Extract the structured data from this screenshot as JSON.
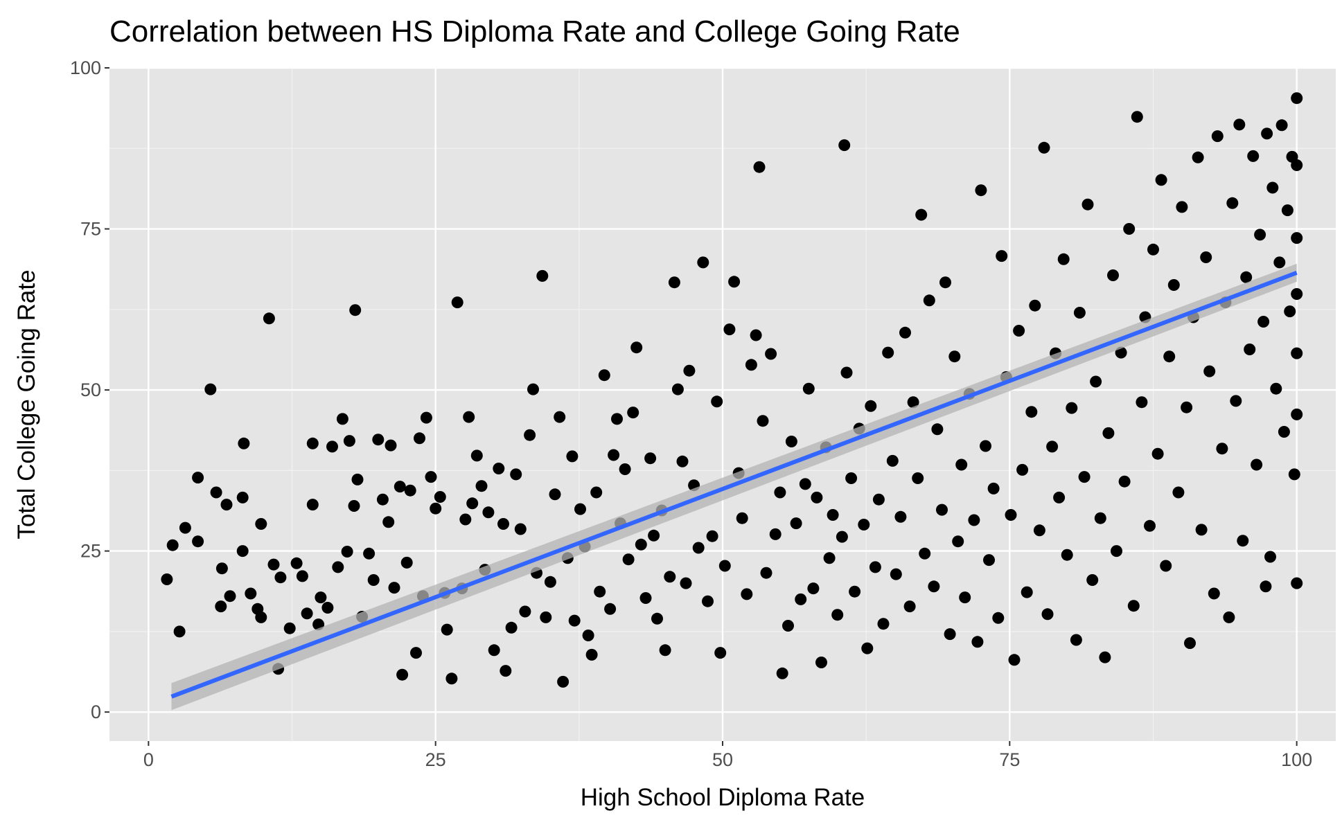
{
  "chart_data": {
    "type": "scatter",
    "title": "Correlation between HS Diploma Rate and College Going Rate",
    "xlabel": "High School Diploma Rate",
    "ylabel": "Total College Going Rate",
    "xlim": [
      -3.4,
      103.4
    ],
    "ylim": [
      -4.5,
      100
    ],
    "x_ticks": [
      0,
      25,
      50,
      75,
      100
    ],
    "y_ticks": [
      0,
      25,
      50,
      75,
      100
    ],
    "grid": true,
    "panel_background": "#e5e5e5",
    "point_color": "#000000",
    "trend_line": {
      "method": "linear fit",
      "color": "#3366ff",
      "band_color": "#b3b3b3",
      "x": [
        2,
        100
      ],
      "y": [
        2.4,
        68.2
      ],
      "band_halfwidth_at_ends": [
        2.1,
        1.4
      ]
    },
    "points": [
      [
        1.6,
        20.6
      ],
      [
        2.1,
        25.9
      ],
      [
        2.7,
        12.5
      ],
      [
        3.2,
        28.6
      ],
      [
        4.3,
        36.4
      ],
      [
        4.3,
        26.5
      ],
      [
        5.4,
        50.1
      ],
      [
        5.9,
        34.1
      ],
      [
        6.4,
        22.3
      ],
      [
        6.3,
        16.4
      ],
      [
        6.8,
        32.2
      ],
      [
        7.1,
        18.0
      ],
      [
        8.2,
        33.3
      ],
      [
        8.2,
        25.0
      ],
      [
        8.3,
        41.7
      ],
      [
        8.9,
        18.4
      ],
      [
        9.5,
        16.0
      ],
      [
        9.8,
        29.2
      ],
      [
        9.8,
        14.7
      ],
      [
        10.5,
        61.1
      ],
      [
        10.9,
        22.9
      ],
      [
        11.3,
        6.7
      ],
      [
        11.5,
        20.9
      ],
      [
        12.3,
        13.0
      ],
      [
        12.9,
        23.1
      ],
      [
        13.4,
        21.1
      ],
      [
        13.8,
        15.3
      ],
      [
        14.3,
        41.7
      ],
      [
        14.3,
        32.2
      ],
      [
        14.8,
        13.6
      ],
      [
        15.0,
        17.8
      ],
      [
        15.6,
        16.2
      ],
      [
        16.0,
        41.2
      ],
      [
        16.5,
        22.5
      ],
      [
        16.9,
        45.5
      ],
      [
        17.3,
        24.9
      ],
      [
        17.5,
        42.1
      ],
      [
        17.9,
        32.0
      ],
      [
        18.0,
        62.4
      ],
      [
        18.2,
        36.1
      ],
      [
        18.6,
        14.8
      ],
      [
        19.2,
        24.6
      ],
      [
        19.6,
        20.5
      ],
      [
        20.0,
        42.3
      ],
      [
        20.4,
        33.0
      ],
      [
        20.9,
        29.5
      ],
      [
        21.1,
        41.4
      ],
      [
        21.4,
        19.3
      ],
      [
        21.9,
        35.0
      ],
      [
        22.1,
        5.8
      ],
      [
        22.5,
        23.2
      ],
      [
        22.8,
        34.4
      ],
      [
        23.3,
        9.2
      ],
      [
        23.6,
        42.5
      ],
      [
        23.9,
        18.0
      ],
      [
        24.2,
        45.7
      ],
      [
        24.6,
        36.5
      ],
      [
        25.0,
        31.6
      ],
      [
        25.4,
        33.4
      ],
      [
        25.8,
        18.5
      ],
      [
        26.0,
        12.8
      ],
      [
        26.4,
        5.2
      ],
      [
        26.9,
        63.6
      ],
      [
        27.3,
        19.2
      ],
      [
        27.6,
        29.9
      ],
      [
        27.9,
        45.8
      ],
      [
        28.2,
        32.4
      ],
      [
        28.6,
        39.8
      ],
      [
        29.0,
        35.1
      ],
      [
        29.3,
        22.1
      ],
      [
        29.6,
        31.0
      ],
      [
        30.1,
        9.6
      ],
      [
        30.5,
        37.8
      ],
      [
        30.9,
        29.2
      ],
      [
        31.1,
        6.4
      ],
      [
        31.6,
        13.1
      ],
      [
        32.0,
        36.9
      ],
      [
        32.4,
        28.4
      ],
      [
        32.8,
        15.6
      ],
      [
        33.2,
        43.0
      ],
      [
        33.5,
        50.1
      ],
      [
        33.8,
        21.6
      ],
      [
        34.3,
        67.7
      ],
      [
        34.6,
        14.7
      ],
      [
        35.0,
        20.2
      ],
      [
        35.4,
        33.8
      ],
      [
        35.8,
        45.8
      ],
      [
        36.1,
        4.7
      ],
      [
        36.5,
        23.9
      ],
      [
        36.9,
        39.7
      ],
      [
        37.1,
        14.2
      ],
      [
        37.6,
        31.5
      ],
      [
        38.0,
        25.7
      ],
      [
        38.3,
        11.9
      ],
      [
        38.6,
        8.9
      ],
      [
        39.0,
        34.1
      ],
      [
        39.3,
        18.7
      ],
      [
        39.7,
        52.3
      ],
      [
        40.2,
        16.0
      ],
      [
        40.5,
        39.9
      ],
      [
        40.8,
        45.5
      ],
      [
        41.1,
        29.3
      ],
      [
        41.5,
        37.7
      ],
      [
        41.8,
        23.7
      ],
      [
        42.2,
        46.5
      ],
      [
        42.5,
        56.6
      ],
      [
        42.9,
        26.0
      ],
      [
        43.3,
        17.7
      ],
      [
        43.7,
        39.4
      ],
      [
        44.0,
        27.4
      ],
      [
        44.3,
        14.5
      ],
      [
        44.7,
        31.3
      ],
      [
        45.0,
        9.6
      ],
      [
        45.4,
        21.0
      ],
      [
        45.8,
        66.7
      ],
      [
        46.1,
        50.1
      ],
      [
        46.5,
        38.9
      ],
      [
        46.8,
        20.0
      ],
      [
        47.1,
        53.0
      ],
      [
        47.5,
        35.2
      ],
      [
        47.9,
        25.5
      ],
      [
        48.3,
        69.8
      ],
      [
        48.7,
        17.2
      ],
      [
        49.1,
        27.3
      ],
      [
        49.5,
        48.2
      ],
      [
        49.8,
        9.2
      ],
      [
        50.2,
        22.7
      ],
      [
        50.6,
        59.4
      ],
      [
        51.0,
        66.8
      ],
      [
        51.4,
        37.1
      ],
      [
        51.7,
        30.1
      ],
      [
        52.1,
        18.3
      ],
      [
        52.5,
        53.9
      ],
      [
        52.9,
        58.5
      ],
      [
        53.2,
        84.6
      ],
      [
        53.5,
        45.2
      ],
      [
        53.8,
        21.6
      ],
      [
        54.2,
        55.6
      ],
      [
        54.6,
        27.6
      ],
      [
        55.0,
        34.1
      ],
      [
        55.2,
        6.0
      ],
      [
        55.7,
        13.4
      ],
      [
        56.0,
        42.0
      ],
      [
        56.4,
        29.3
      ],
      [
        56.8,
        17.5
      ],
      [
        57.2,
        35.4
      ],
      [
        57.5,
        50.2
      ],
      [
        57.9,
        19.2
      ],
      [
        58.2,
        33.3
      ],
      [
        58.6,
        7.7
      ],
      [
        59.0,
        41.1
      ],
      [
        59.3,
        23.9
      ],
      [
        59.6,
        30.6
      ],
      [
        60.0,
        15.1
      ],
      [
        60.4,
        27.2
      ],
      [
        60.6,
        88.0
      ],
      [
        60.8,
        52.7
      ],
      [
        61.2,
        36.3
      ],
      [
        61.5,
        18.7
      ],
      [
        61.9,
        44.0
      ],
      [
        62.3,
        29.1
      ],
      [
        62.6,
        9.9
      ],
      [
        62.9,
        47.5
      ],
      [
        63.3,
        22.5
      ],
      [
        63.6,
        33.0
      ],
      [
        64.0,
        13.7
      ],
      [
        64.4,
        55.8
      ],
      [
        64.8,
        39.0
      ],
      [
        65.1,
        21.4
      ],
      [
        65.5,
        30.3
      ],
      [
        65.9,
        58.9
      ],
      [
        66.3,
        16.4
      ],
      [
        66.6,
        48.1
      ],
      [
        67.0,
        36.3
      ],
      [
        67.3,
        77.2
      ],
      [
        67.6,
        24.6
      ],
      [
        68.0,
        63.9
      ],
      [
        68.4,
        19.5
      ],
      [
        68.7,
        43.9
      ],
      [
        69.1,
        31.4
      ],
      [
        69.4,
        66.7
      ],
      [
        69.8,
        12.1
      ],
      [
        70.2,
        55.2
      ],
      [
        70.5,
        26.5
      ],
      [
        70.8,
        38.4
      ],
      [
        71.1,
        17.8
      ],
      [
        71.5,
        49.4
      ],
      [
        71.9,
        29.8
      ],
      [
        72.2,
        10.9
      ],
      [
        72.5,
        81.0
      ],
      [
        72.9,
        41.3
      ],
      [
        73.2,
        23.6
      ],
      [
        73.6,
        34.7
      ],
      [
        74.0,
        14.6
      ],
      [
        74.3,
        70.8
      ],
      [
        74.7,
        52.0
      ],
      [
        75.1,
        30.6
      ],
      [
        75.4,
        8.1
      ],
      [
        75.8,
        59.2
      ],
      [
        76.1,
        37.6
      ],
      [
        76.5,
        18.6
      ],
      [
        76.9,
        46.6
      ],
      [
        77.2,
        63.1
      ],
      [
        77.6,
        28.2
      ],
      [
        78.0,
        87.6
      ],
      [
        78.3,
        15.2
      ],
      [
        78.7,
        41.2
      ],
      [
        79.0,
        55.7
      ],
      [
        79.3,
        33.3
      ],
      [
        79.7,
        70.3
      ],
      [
        80.0,
        24.4
      ],
      [
        80.4,
        47.2
      ],
      [
        80.8,
        11.2
      ],
      [
        81.1,
        62.0
      ],
      [
        81.5,
        36.5
      ],
      [
        81.8,
        78.8
      ],
      [
        82.2,
        20.5
      ],
      [
        82.5,
        51.3
      ],
      [
        82.9,
        30.1
      ],
      [
        83.3,
        8.5
      ],
      [
        83.6,
        43.3
      ],
      [
        84.0,
        67.8
      ],
      [
        84.3,
        25.0
      ],
      [
        84.7,
        55.8
      ],
      [
        85.0,
        35.8
      ],
      [
        85.4,
        75.0
      ],
      [
        85.8,
        16.5
      ],
      [
        86.1,
        92.4
      ],
      [
        86.5,
        48.1
      ],
      [
        86.8,
        61.3
      ],
      [
        87.2,
        28.9
      ],
      [
        87.5,
        71.8
      ],
      [
        87.9,
        40.1
      ],
      [
        88.2,
        82.6
      ],
      [
        88.6,
        22.7
      ],
      [
        88.9,
        55.2
      ],
      [
        89.3,
        66.3
      ],
      [
        89.7,
        34.1
      ],
      [
        90.0,
        78.4
      ],
      [
        90.4,
        47.3
      ],
      [
        90.7,
        10.7
      ],
      [
        91.0,
        61.3
      ],
      [
        91.4,
        86.1
      ],
      [
        91.7,
        28.3
      ],
      [
        92.1,
        70.6
      ],
      [
        92.4,
        52.9
      ],
      [
        92.8,
        18.4
      ],
      [
        93.1,
        89.4
      ],
      [
        93.5,
        40.9
      ],
      [
        93.8,
        63.6
      ],
      [
        94.1,
        14.7
      ],
      [
        94.4,
        79.0
      ],
      [
        94.7,
        48.3
      ],
      [
        95.0,
        91.2
      ],
      [
        95.3,
        26.6
      ],
      [
        95.6,
        67.5
      ],
      [
        95.9,
        56.3
      ],
      [
        96.2,
        86.3
      ],
      [
        96.5,
        38.4
      ],
      [
        96.8,
        74.1
      ],
      [
        97.1,
        60.6
      ],
      [
        97.4,
        89.8
      ],
      [
        97.7,
        24.1
      ],
      [
        97.9,
        81.4
      ],
      [
        98.2,
        50.2
      ],
      [
        98.5,
        69.8
      ],
      [
        98.7,
        91.1
      ],
      [
        98.9,
        43.5
      ],
      [
        99.2,
        77.9
      ],
      [
        99.4,
        62.2
      ],
      [
        99.6,
        86.2
      ],
      [
        99.8,
        36.9
      ],
      [
        100.0,
        95.3
      ],
      [
        100.0,
        84.9
      ],
      [
        100.0,
        73.6
      ],
      [
        100.0,
        64.9
      ],
      [
        100.0,
        55.7
      ],
      [
        100.0,
        46.2
      ],
      [
        100.0,
        20.0
      ],
      [
        97.3,
        19.5
      ]
    ]
  }
}
